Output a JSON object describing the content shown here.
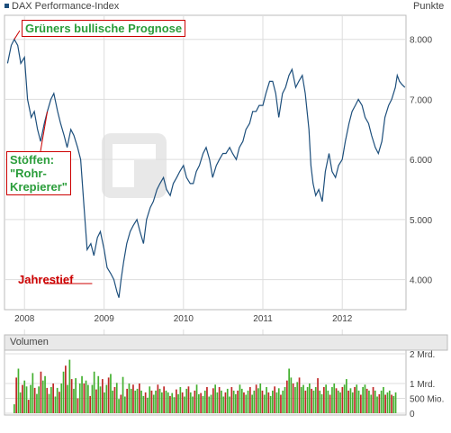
{
  "header": {
    "series_name": "DAX Performance-Index",
    "unit": "Punkte"
  },
  "colors": {
    "line": "#1d4f7c",
    "vol_up": "#44b030",
    "vol_down": "#c02828",
    "grid": "#dddddd",
    "frame": "#bbbbbb",
    "panel_bg": "#e9e9e9"
  },
  "chart_data": [
    {
      "type": "line",
      "series": [
        {
          "name": "DAX Performance-Index",
          "x": [
            "2007-10-15",
            "2007-11-01",
            "2007-11-15",
            "2007-12-01",
            "2007-12-15",
            "2008-01-01",
            "2008-01-15",
            "2008-02-01",
            "2008-02-15",
            "2008-03-01",
            "2008-03-15",
            "2008-04-01",
            "2008-04-15",
            "2008-05-01",
            "2008-05-15",
            "2008-06-01",
            "2008-06-15",
            "2008-07-01",
            "2008-07-15",
            "2008-08-01",
            "2008-08-15",
            "2008-09-01",
            "2008-09-15",
            "2008-10-01",
            "2008-10-15",
            "2008-11-01",
            "2008-11-15",
            "2008-12-01",
            "2008-12-15",
            "2009-01-01",
            "2009-01-15",
            "2009-02-01",
            "2009-02-15",
            "2009-03-01",
            "2009-03-10",
            "2009-03-20",
            "2009-04-01",
            "2009-04-15",
            "2009-05-01",
            "2009-05-15",
            "2009-06-01",
            "2009-06-15",
            "2009-07-01",
            "2009-07-15",
            "2009-08-01",
            "2009-08-15",
            "2009-09-01",
            "2009-09-15",
            "2009-10-01",
            "2009-10-15",
            "2009-11-01",
            "2009-11-15",
            "2009-12-01",
            "2009-12-15",
            "2010-01-01",
            "2010-01-15",
            "2010-02-01",
            "2010-02-15",
            "2010-03-01",
            "2010-03-15",
            "2010-04-01",
            "2010-04-15",
            "2010-05-01",
            "2010-05-15",
            "2010-06-01",
            "2010-06-15",
            "2010-07-01",
            "2010-07-15",
            "2010-08-01",
            "2010-08-15",
            "2010-09-01",
            "2010-09-15",
            "2010-10-01",
            "2010-10-15",
            "2010-11-01",
            "2010-11-15",
            "2010-12-01",
            "2010-12-15",
            "2011-01-01",
            "2011-01-15",
            "2011-02-01",
            "2011-02-15",
            "2011-03-01",
            "2011-03-15",
            "2011-04-01",
            "2011-04-15",
            "2011-05-01",
            "2011-05-15",
            "2011-06-01",
            "2011-06-15",
            "2011-07-01",
            "2011-07-15",
            "2011-08-01",
            "2011-08-10",
            "2011-08-20",
            "2011-09-01",
            "2011-09-15",
            "2011-10-01",
            "2011-10-15",
            "2011-11-01",
            "2011-11-15",
            "2011-12-01",
            "2011-12-15",
            "2012-01-01",
            "2012-01-15",
            "2012-02-01",
            "2012-02-15",
            "2012-03-01",
            "2012-03-15",
            "2012-04-01",
            "2012-04-15",
            "2012-05-01",
            "2012-05-15",
            "2012-06-01",
            "2012-06-15",
            "2012-07-01",
            "2012-07-15",
            "2012-08-01",
            "2012-08-15",
            "2012-09-01",
            "2012-09-10",
            "2012-09-20",
            "2012-10-01",
            "2012-10-15"
          ],
          "y": [
            7600,
            7900,
            8000,
            7900,
            7600,
            7700,
            7000,
            6700,
            6800,
            6500,
            6300,
            6600,
            6800,
            7000,
            7100,
            6800,
            6600,
            6400,
            6200,
            6500,
            6400,
            6200,
            6000,
            5200,
            4500,
            4600,
            4400,
            4700,
            4800,
            4500,
            4200,
            4100,
            4000,
            3800,
            3700,
            4000,
            4300,
            4600,
            4800,
            4900,
            5000,
            4800,
            4600,
            5000,
            5200,
            5300,
            5500,
            5600,
            5700,
            5500,
            5400,
            5600,
            5700,
            5800,
            5900,
            5700,
            5600,
            5600,
            5800,
            5900,
            6100,
            6200,
            6000,
            5700,
            5900,
            6000,
            6100,
            6100,
            6200,
            6100,
            6000,
            6200,
            6300,
            6500,
            6600,
            6800,
            6800,
            6900,
            6900,
            7100,
            7300,
            7300,
            7100,
            6700,
            7100,
            7200,
            7400,
            7500,
            7200,
            7300,
            7400,
            7100,
            6500,
            5900,
            5600,
            5400,
            5500,
            5300,
            5800,
            6100,
            5800,
            5700,
            5900,
            6000,
            6300,
            6600,
            6800,
            6900,
            7000,
            6900,
            6700,
            6600,
            6400,
            6200,
            6100,
            6300,
            6700,
            6900,
            7000,
            7200,
            7400,
            7300,
            7250,
            7200
          ]
        }
      ],
      "xticks": [
        "2008",
        "2009",
        "2010",
        "2011",
        "2012"
      ],
      "yticks": [
        "4.000",
        "5.000",
        "6.000",
        "7.000",
        "8.000"
      ],
      "ylim": [
        3500,
        8400
      ],
      "xlim": [
        "2007-10-01",
        "2012-10-20"
      ],
      "grid": true,
      "annotations": [
        {
          "text": "Grüners bullische Prognose",
          "x": "2007-11-15",
          "y": 8000,
          "color": "green"
        },
        {
          "text": "Stöffen:\n\"Rohr-\nKrepierer\"",
          "x": "2008-04-15",
          "y": 6800,
          "color": "green"
        },
        {
          "text": "Jahrestief",
          "x": "2008-10-01",
          "y": 4100,
          "color": "red"
        }
      ]
    },
    {
      "type": "bar",
      "title": "Volumen",
      "yticks": [
        "0",
        "500 Mio.",
        "1 Mrd.",
        "2 Mrd."
      ],
      "ylim": [
        0,
        2000
      ],
      "series": [
        {
          "name": "Volumen",
          "values": [
            300,
            1200,
            1500,
            700,
            950,
            1100,
            900,
            450,
            950,
            1350,
            850,
            650,
            900,
            1400,
            1100,
            1250,
            850,
            650,
            880,
            1000,
            560,
            850,
            720,
            1000,
            1400,
            1600,
            950,
            1800,
            1150,
            820,
            1180,
            500,
            1000,
            1250,
            1000,
            1100,
            950,
            580,
            950,
            1400,
            800,
            1250,
            900,
            1150,
            700,
            950,
            1200,
            1320,
            760,
            880,
            1020,
            480,
            620,
            1220,
            560,
            820,
            1000,
            820,
            960,
            760,
            820,
            1000,
            760,
            580,
            700,
            520,
            900,
            760,
            620,
            760,
            960,
            820,
            700,
            900,
            760,
            700,
            580,
            680,
            540,
            800,
            640,
            880,
            700,
            560,
            820,
            900,
            700,
            560,
            760,
            960,
            640,
            680,
            580,
            760,
            880,
            560,
            620,
            840,
            960,
            700,
            880,
            760,
            560,
            700,
            820,
            560,
            880,
            760,
            640,
            760,
            960,
            820,
            700,
            620,
            760,
            880,
            620,
            760,
            960,
            840,
            1000,
            760,
            620,
            880,
            700,
            580,
            760,
            900,
            700,
            840,
            620,
            760,
            880,
            1100,
            1500,
            1200,
            1000,
            880,
            1050,
            1200,
            880,
            950,
            760,
            880,
            1000,
            820,
            760,
            880,
            1180,
            760,
            640,
            880,
            960,
            760,
            620,
            880,
            1000,
            840,
            760,
            700,
            880,
            960,
            1150,
            760,
            840,
            700,
            880,
            960,
            760,
            620,
            880,
            960,
            820,
            760,
            620,
            880,
            760,
            560,
            640,
            760,
            880,
            620,
            700,
            760,
            620,
            580,
            700
          ]
        }
      ]
    }
  ]
}
